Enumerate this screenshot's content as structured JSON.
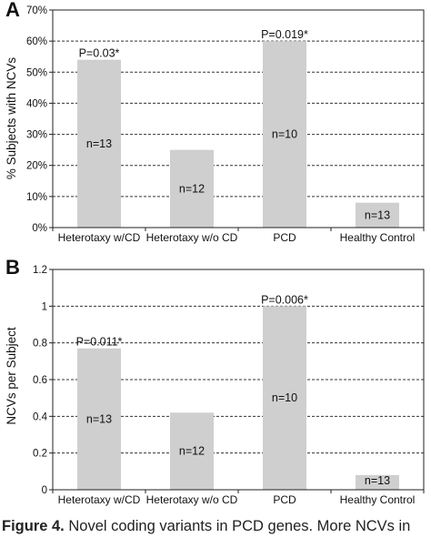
{
  "chart_data": [
    {
      "type": "bar",
      "panel_label": "A",
      "ylabel": "% Subjects with NCVs",
      "categories": [
        "Heterotaxy w/CD",
        "Heterotaxy w/o CD",
        "PCD",
        "Healthy Control"
      ],
      "values": [
        54,
        25,
        60,
        8
      ],
      "bar_labels": [
        "n=13",
        "n=12",
        "n=10",
        "n=13"
      ],
      "annotations": [
        "P=0.03*",
        "",
        "P=0.019*",
        ""
      ],
      "yticks": [
        0,
        10,
        20,
        30,
        40,
        50,
        60,
        70
      ],
      "ytick_labels": [
        "0%",
        "10%",
        "20%",
        "30%",
        "40%",
        "50%",
        "60%",
        "70%"
      ],
      "ylim": [
        0,
        70
      ],
      "grid": true,
      "bar_color": "#cfcfcf"
    },
    {
      "type": "bar",
      "panel_label": "B",
      "ylabel": "NCVs per Subject",
      "categories": [
        "Heterotaxy w/CD",
        "Heterotaxy w/o CD",
        "PCD",
        "Healthy Control"
      ],
      "values": [
        0.77,
        0.42,
        1.0,
        0.08
      ],
      "bar_labels": [
        "n=13",
        "n=12",
        "n=10",
        "n=13"
      ],
      "annotations": [
        "P=0.011*",
        "",
        "P=0.006*",
        ""
      ],
      "yticks": [
        0,
        0.2,
        0.4,
        0.6,
        0.8,
        1,
        1.2
      ],
      "ytick_labels": [
        "0",
        "0.2",
        "0.4",
        "0.6",
        "0.8",
        "1",
        "1.2"
      ],
      "ylim": [
        0,
        1.2
      ],
      "grid": true,
      "bar_color": "#cfcfcf"
    }
  ],
  "caption": {
    "label": "Figure 4.",
    "text": "Novel coding variants in PCD genes. More NCVs in"
  }
}
